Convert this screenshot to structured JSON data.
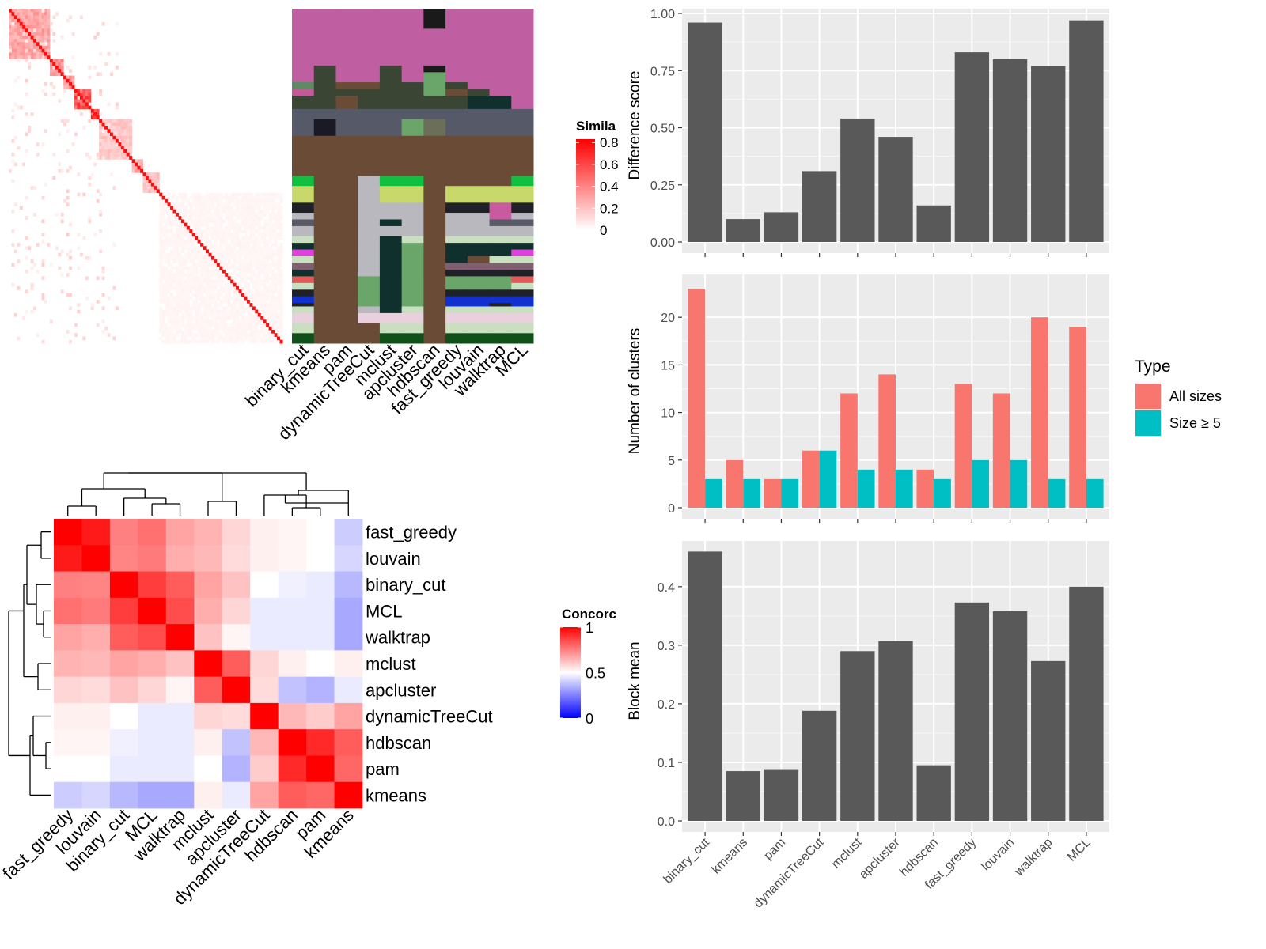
{
  "chart_data": [
    {
      "type": "heatmap",
      "name": "similarity",
      "legend_title": "Simila",
      "legend_ticks": [
        "0.8",
        "0.6",
        "0.4",
        "0.2",
        "0"
      ],
      "diag_blocks": [
        {
          "start": 0,
          "size": 15,
          "level": 0.45
        },
        {
          "start": 15,
          "size": 5,
          "level": 0.55
        },
        {
          "start": 20,
          "size": 4,
          "level": 0.5
        },
        {
          "start": 24,
          "size": 6,
          "level": 0.85
        },
        {
          "start": 30,
          "size": 3,
          "level": 0.9
        },
        {
          "start": 33,
          "size": 12,
          "level": 0.28
        },
        {
          "start": 45,
          "size": 4,
          "level": 0.4
        },
        {
          "start": 49,
          "size": 6,
          "level": 0.3
        },
        {
          "start": 55,
          "size": 45,
          "level": 0.05
        }
      ]
    },
    {
      "type": "table",
      "name": "cluster_assignments",
      "columns": [
        "binary_cut",
        "kmeans",
        "pam",
        "dynamicTreeCut",
        "mclust",
        "apcluster",
        "hdbscan",
        "fast_greedy",
        "louvain",
        "walktrap",
        "MCL"
      ],
      "segments": [
        {
          "rows": 6,
          "colors": [
            "#bf5ea0",
            "#bf5ea0",
            "#bf5ea0",
            "#bf5ea0",
            "#bf5ea0",
            "#bf5ea0",
            "#1a1a1a",
            "#bf5ea0",
            "#bf5ea0",
            "#bf5ea0",
            "#bf5ea0"
          ]
        },
        {
          "rows": 11,
          "colors": [
            "#bf5ea0",
            "#bf5ea0",
            "#bf5ea0",
            "#bf5ea0",
            "#bf5ea0",
            "#bf5ea0",
            "#bf5ea0",
            "#bf5ea0",
            "#bf5ea0",
            "#bf5ea0",
            "#bf5ea0"
          ]
        },
        {
          "rows": 2,
          "colors": [
            "#bf5ea0",
            "#3a4533",
            "#bf5ea0",
            "#bf5ea0",
            "#3a4533",
            "#bf5ea0",
            "#1a1a1a",
            "#bf5ea0",
            "#bf5ea0",
            "#bf5ea0",
            "#bf5ea0"
          ]
        },
        {
          "rows": 3,
          "colors": [
            "#bf5ea0",
            "#3a4533",
            "#bf5ea0",
            "#bf5ea0",
            "#3a4533",
            "#bf5ea0",
            "#6aa56a",
            "#bf5ea0",
            "#bf5ea0",
            "#bf5ea0",
            "#bf5ea0"
          ]
        },
        {
          "rows": 2,
          "colors": [
            "#5e8a64",
            "#3a4533",
            "#6a4b36",
            "#6a4b36",
            "#3a4533",
            "#3a4533",
            "#6aa56a",
            "#3a4533",
            "#bf5ea0",
            "#bf5ea0",
            "#bf5ea0"
          ]
        },
        {
          "rows": 2,
          "colors": [
            "#c25a99",
            "#3a4533",
            "#3a4533",
            "#3a4533",
            "#3a4533",
            "#3a4533",
            "#6aa56a",
            "#6a4b36",
            "#3a4533",
            "#bf5ea0",
            "#bf5ea0"
          ]
        },
        {
          "rows": 4,
          "colors": [
            "#3a4533",
            "#3a4533",
            "#6a4b36",
            "#3a4533",
            "#3a4533",
            "#3a4533",
            "#3a4533",
            "#3a4533",
            "#10302e",
            "#10302e",
            "#bf5ea0"
          ]
        },
        {
          "rows": 3,
          "colors": [
            "#565a68",
            "#565a68",
            "#565a68",
            "#565a68",
            "#565a68",
            "#565a68",
            "#565a68",
            "#565a68",
            "#565a68",
            "#565a68",
            "#565a68"
          ]
        },
        {
          "rows": 5,
          "colors": [
            "#565a68",
            "#1a1a24",
            "#565a68",
            "#565a68",
            "#565a68",
            "#6ba56a",
            "#6b6e59",
            "#565a68",
            "#565a68",
            "#565a68",
            "#565a68"
          ]
        },
        {
          "rows": 12,
          "colors": [
            "#6a4b36",
            "#6a4b36",
            "#6a4b36",
            "#6a4b36",
            "#6a4b36",
            "#6a4b36",
            "#6a4b36",
            "#6a4b36",
            "#6a4b36",
            "#6a4b36",
            "#6a4b36"
          ]
        },
        {
          "rows": 3,
          "colors": [
            "#10c040",
            "#6a4b36",
            "#6a4b36",
            "#b8b8be",
            "#10c040",
            "#10c040",
            "#6a4b36",
            "#6a4b36",
            "#6a4b36",
            "#6a4b36",
            "#10c040"
          ]
        },
        {
          "rows": 5,
          "colors": [
            "#c8d86a",
            "#6a4b36",
            "#6a4b36",
            "#b8b8be",
            "#c8d86a",
            "#c8d86a",
            "#6a4b36",
            "#c8d86a",
            "#c8d86a",
            "#c8d86a",
            "#c8d86a"
          ]
        },
        {
          "rows": 3,
          "colors": [
            "#202028",
            "#6a4b36",
            "#6a4b36",
            "#b8b8be",
            "#b8b8be",
            "#b8b8be",
            "#6a4b36",
            "#202028",
            "#202028",
            "#c85aa0",
            "#202028"
          ]
        },
        {
          "rows": 2,
          "colors": [
            "#b8b8be",
            "#6a4b36",
            "#6a4b36",
            "#b8b8be",
            "#b8b8be",
            "#b8b8be",
            "#6a4b36",
            "#b8b8be",
            "#b8b8be",
            "#c85aa0",
            "#b8b8be"
          ]
        },
        {
          "rows": 2,
          "colors": [
            "#585a66",
            "#6a4b36",
            "#6a4b36",
            "#b8b8be",
            "#10302e",
            "#b8b8be",
            "#6a4b36",
            "#b8b8be",
            "#b8b8be",
            "#585a66",
            "#585a66"
          ]
        },
        {
          "rows": 3,
          "colors": [
            "#b8b8be",
            "#6a4b36",
            "#6a4b36",
            "#b8b8be",
            "#b8b8be",
            "#b8b8be",
            "#6a4b36",
            "#b8b8be",
            "#b8b8be",
            "#b8b8be",
            "#b8b8be"
          ]
        },
        {
          "rows": 2,
          "colors": [
            "#c8e0c0",
            "#6a4b36",
            "#6a4b36",
            "#b8b8be",
            "#10302e",
            "#c8e0c0",
            "#6a4b36",
            "#c8e0c0",
            "#c8e0c0",
            "#c8e0c0",
            "#c8e0c0"
          ]
        },
        {
          "rows": 2,
          "colors": [
            "#10302e",
            "#6a4b36",
            "#6a4b36",
            "#b8b8be",
            "#10302e",
            "#6aa56a",
            "#6a4b36",
            "#10302e",
            "#10302e",
            "#10302e",
            "#10302e"
          ]
        },
        {
          "rows": 2,
          "colors": [
            "#e040e0",
            "#6a4b36",
            "#6a4b36",
            "#b8b8be",
            "#10302e",
            "#6aa56a",
            "#6a4b36",
            "#10302e",
            "#10302e",
            "#10302e",
            "#e040e0"
          ]
        },
        {
          "rows": 2,
          "colors": [
            "#c8e0c0",
            "#6a4b36",
            "#6a4b36",
            "#b8b8be",
            "#10302e",
            "#6aa56a",
            "#6a4b36",
            "#10302e",
            "#6a4b36",
            "#c8e0c0",
            "#c8e0c0"
          ]
        },
        {
          "rows": 2,
          "colors": [
            "#806070",
            "#6a4b36",
            "#6a4b36",
            "#b8b8be",
            "#10302e",
            "#6aa56a",
            "#6a4b36",
            "#806070",
            "#806070",
            "#806070",
            "#806070"
          ]
        },
        {
          "rows": 2,
          "colors": [
            "#10302e",
            "#6a4b36",
            "#6a4b36",
            "#b8b8be",
            "#10302e",
            "#6aa56a",
            "#6a4b36",
            "#202028",
            "#202028",
            "#202028",
            "#202028"
          ]
        },
        {
          "rows": 2,
          "colors": [
            "#e05a5a",
            "#6a4b36",
            "#6a4b36",
            "#6aa56a",
            "#10302e",
            "#6aa56a",
            "#6a4b36",
            "#6aa56a",
            "#6aa56a",
            "#6aa56a",
            "#e05a5a"
          ]
        },
        {
          "rows": 2,
          "colors": [
            "#c8e0c0",
            "#6a4b36",
            "#6a4b36",
            "#6aa56a",
            "#10302e",
            "#6aa56a",
            "#6a4b36",
            "#6aa56a",
            "#6aa56a",
            "#6aa56a",
            "#c8e0c0"
          ]
        },
        {
          "rows": 2,
          "colors": [
            "#202028",
            "#6a4b36",
            "#6a4b36",
            "#6aa56a",
            "#10302e",
            "#6aa56a",
            "#6a4b36",
            "#202028",
            "#202028",
            "#202028",
            "#202028"
          ]
        },
        {
          "rows": 2,
          "colors": [
            "#1030d0",
            "#6a4b36",
            "#6a4b36",
            "#6aa56a",
            "#10302e",
            "#6aa56a",
            "#6a4b36",
            "#1030d0",
            "#1030d0",
            "#1030d0",
            "#1030d0"
          ]
        },
        {
          "rows": 1,
          "colors": [
            "#202028",
            "#6a4b36",
            "#6a4b36",
            "#6aa56a",
            "#10302e",
            "#6aa56a",
            "#6a4b36",
            "#1030d0",
            "#1030d0",
            "#202028",
            "#1030d0"
          ]
        },
        {
          "rows": 2,
          "colors": [
            "#c8e0c0",
            "#6a4b36",
            "#6a4b36",
            "#b8b8be",
            "#10302e",
            "#c8e0c0",
            "#6a4b36",
            "#c8e0c0",
            "#c8e0c0",
            "#c8e0c0",
            "#c8e0c0"
          ]
        },
        {
          "rows": 3,
          "colors": [
            "#e8d0dc",
            "#6a4b36",
            "#6a4b36",
            "#e8d0dc",
            "#e8d0dc",
            "#e8d0dc",
            "#6a4b36",
            "#e8d0dc",
            "#e8d0dc",
            "#e8d0dc",
            "#e8d0dc"
          ]
        },
        {
          "rows": 3,
          "colors": [
            "#c8e0c0",
            "#6a4b36",
            "#6a4b36",
            "#6a4b36",
            "#c8e0c0",
            "#c8e0c0",
            "#6a4b36",
            "#c8e0c0",
            "#c8e0c0",
            "#c8e0c0",
            "#c8e0c0"
          ]
        },
        {
          "rows": 3,
          "colors": [
            "#10501a",
            "#6a4b36",
            "#6a4b36",
            "#6a4b36",
            "#10501a",
            "#10501a",
            "#6a4b36",
            "#10501a",
            "#10501a",
            "#10501a",
            "#10501a"
          ]
        }
      ]
    },
    {
      "type": "heatmap",
      "name": "concordance",
      "legend_title": "Concorc",
      "legend_ticks": [
        "1",
        "0.5",
        "0"
      ],
      "rows": [
        "fast_greedy",
        "louvain",
        "binary_cut",
        "MCL",
        "walktrap",
        "mclust",
        "apcluster",
        "dynamicTreeCut",
        "hdbscan",
        "pam",
        "kmeans"
      ],
      "columns": [
        "fast_greedy",
        "louvain",
        "binary_cut",
        "MCL",
        "walktrap",
        "mclust",
        "apcluster",
        "dynamicTreeCut",
        "hdbscan",
        "pam",
        "kmeans"
      ],
      "values": [
        [
          1.0,
          0.95,
          0.75,
          0.78,
          0.68,
          0.65,
          0.58,
          0.53,
          0.52,
          0.5,
          0.4
        ],
        [
          0.95,
          1.0,
          0.74,
          0.76,
          0.66,
          0.64,
          0.57,
          0.53,
          0.52,
          0.5,
          0.42
        ],
        [
          0.75,
          0.74,
          1.0,
          0.88,
          0.82,
          0.68,
          0.62,
          0.5,
          0.47,
          0.46,
          0.36
        ],
        [
          0.78,
          0.76,
          0.88,
          1.0,
          0.85,
          0.66,
          0.58,
          0.46,
          0.46,
          0.46,
          0.33
        ],
        [
          0.68,
          0.66,
          0.82,
          0.85,
          1.0,
          0.62,
          0.52,
          0.46,
          0.46,
          0.46,
          0.33
        ],
        [
          0.65,
          0.64,
          0.68,
          0.66,
          0.62,
          1.0,
          0.82,
          0.58,
          0.53,
          0.5,
          0.53
        ],
        [
          0.58,
          0.57,
          0.62,
          0.58,
          0.52,
          0.82,
          1.0,
          0.57,
          0.38,
          0.35,
          0.46
        ],
        [
          0.53,
          0.53,
          0.5,
          0.46,
          0.46,
          0.58,
          0.57,
          1.0,
          0.64,
          0.6,
          0.68
        ],
        [
          0.52,
          0.52,
          0.47,
          0.46,
          0.46,
          0.53,
          0.38,
          0.64,
          1.0,
          0.92,
          0.82
        ],
        [
          0.5,
          0.5,
          0.46,
          0.46,
          0.46,
          0.5,
          0.35,
          0.6,
          0.92,
          1.0,
          0.8
        ],
        [
          0.4,
          0.42,
          0.36,
          0.33,
          0.33,
          0.53,
          0.46,
          0.68,
          0.82,
          0.8,
          1.0
        ]
      ]
    },
    {
      "type": "bar",
      "name": "difference_score",
      "ylabel": "Difference score",
      "categories": [
        "binary_cut",
        "kmeans",
        "pam",
        "dynamicTreeCut",
        "mclust",
        "apcluster",
        "hdbscan",
        "fast_greedy",
        "louvain",
        "walktrap",
        "MCL"
      ],
      "values": [
        0.96,
        0.1,
        0.13,
        0.31,
        0.54,
        0.46,
        0.16,
        0.83,
        0.8,
        0.77,
        0.97
      ],
      "ylim": [
        0,
        1
      ],
      "yticks": [
        "0.00",
        "0.25",
        "0.50",
        "0.75",
        "1.00"
      ],
      "bar_color": "#595959"
    },
    {
      "type": "bar",
      "name": "number_of_clusters",
      "ylabel": "Number of clusters",
      "categories": [
        "binary_cut",
        "kmeans",
        "pam",
        "dynamicTreeCut",
        "mclust",
        "apcluster",
        "hdbscan",
        "fast_greedy",
        "louvain",
        "walktrap",
        "MCL"
      ],
      "series": [
        {
          "name": "All sizes",
          "color": "#f8766d",
          "values": [
            23,
            5,
            3,
            6,
            12,
            14,
            4,
            13,
            12,
            20,
            19
          ]
        },
        {
          "name": "Size ≥ 5",
          "color": "#00bfc4",
          "values": [
            3,
            3,
            3,
            6,
            4,
            4,
            3,
            5,
            5,
            3,
            3
          ]
        }
      ],
      "ylim": [
        0,
        24
      ],
      "yticks": [
        "0",
        "5",
        "10",
        "15",
        "20"
      ],
      "legend_title": "Type",
      "legend_position": "right"
    },
    {
      "type": "bar",
      "name": "block_mean",
      "ylabel": "Block mean",
      "categories": [
        "binary_cut",
        "kmeans",
        "pam",
        "dynamicTreeCut",
        "mclust",
        "apcluster",
        "hdbscan",
        "fast_greedy",
        "louvain",
        "walktrap",
        "MCL"
      ],
      "values": [
        0.46,
        0.085,
        0.087,
        0.188,
        0.29,
        0.307,
        0.095,
        0.373,
        0.358,
        0.273,
        0.4
      ],
      "ylim": [
        0,
        0.47
      ],
      "yticks": [
        "0.0",
        "0.1",
        "0.2",
        "0.3",
        "0.4"
      ],
      "bar_color": "#595959"
    }
  ]
}
